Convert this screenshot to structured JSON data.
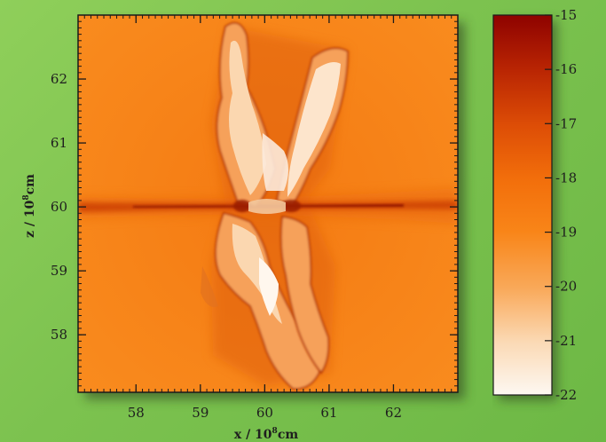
{
  "chart_data": {
    "type": "heatmap",
    "description_axis_units": "10^8 cm",
    "xlabel_main": "x / 10",
    "xlabel_exp": "8",
    "xlabel_unit": "cm",
    "ylabel_main": "z / 10",
    "ylabel_exp": "8",
    "ylabel_unit": "cm",
    "xlim": [
      57.1,
      63.0
    ],
    "ylim": [
      57.1,
      63.0
    ],
    "x_ticks": [
      58,
      59,
      60,
      61,
      62
    ],
    "y_ticks": [
      58,
      59,
      60,
      61,
      62
    ],
    "colorbar": {
      "range": [
        -22,
        -15
      ],
      "ticks": [
        -15,
        -16,
        -17,
        -18,
        -19,
        -20,
        -21,
        -22
      ],
      "tick_labels": [
        "-15",
        "-16",
        "-17",
        "-18",
        "-19",
        "-20",
        "-21",
        "-22"
      ],
      "colors": [
        "#fdf8f2",
        "#fbd9b4",
        "#f9a95a",
        "#f98518",
        "#f26e0b",
        "#dd4d06",
        "#b82403",
        "#8e0200"
      ]
    },
    "background_color": "#f8871a",
    "lobe_color": "#fbd9b3",
    "equator_color": "#a11802"
  }
}
